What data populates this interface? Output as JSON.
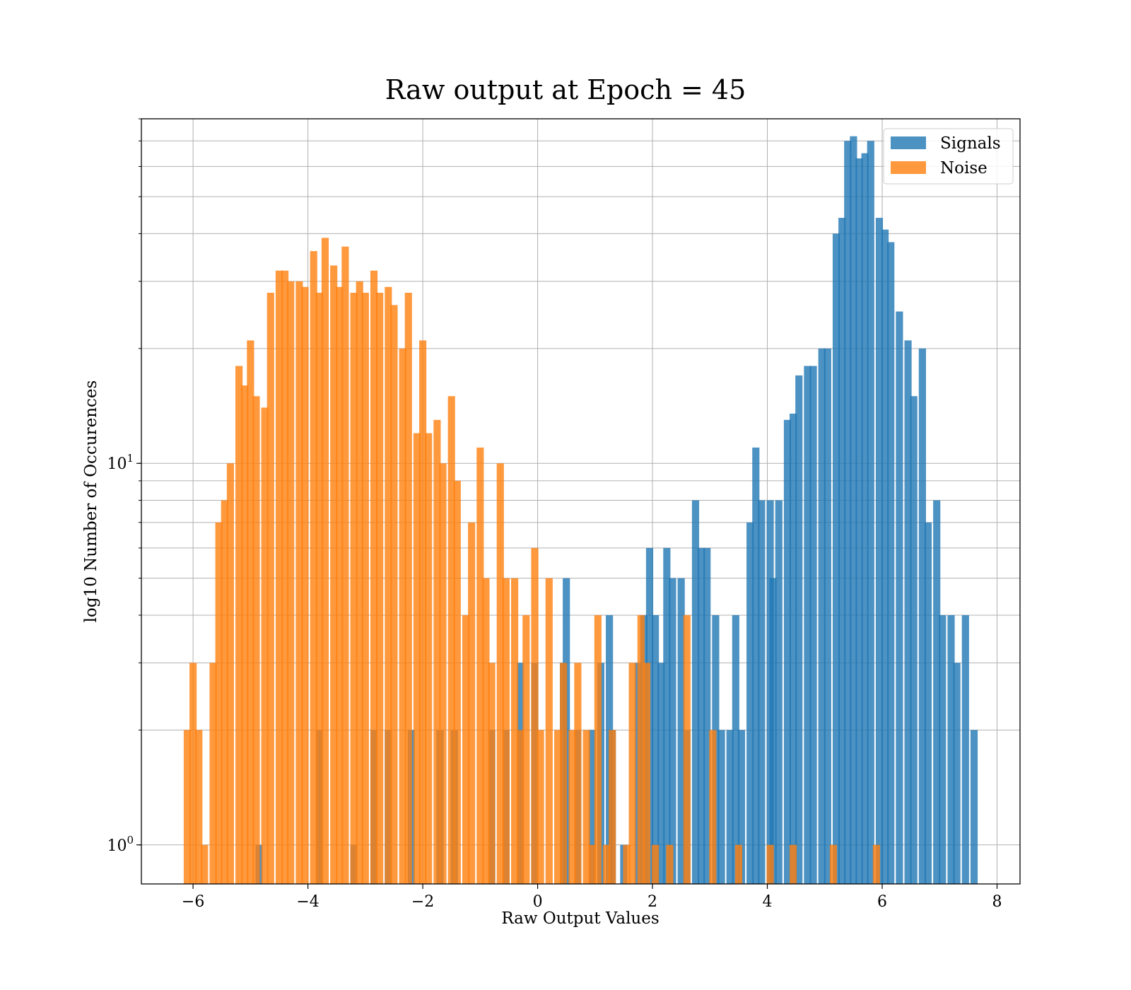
{
  "chart_data": {
    "type": "bar",
    "title": "Raw output at Epoch = 45",
    "xlabel": "Raw Output Values",
    "ylabel": "log10 Number of Occurences",
    "xlim": [
      -6.9,
      8.4
    ],
    "ylim": [
      0.79,
      80
    ],
    "yscale": "log",
    "grid": true,
    "legend_position": "top-right",
    "bin_width": 0.125,
    "xticks": [
      -6,
      -4,
      -2,
      0,
      2,
      4,
      6,
      8
    ],
    "xtick_labels": [
      "−6",
      "−4",
      "−2",
      "0",
      "2",
      "4",
      "6",
      "8"
    ],
    "yticks": [
      {
        "value": 1,
        "base": "10",
        "exp": "0"
      },
      {
        "value": 10,
        "base": "10",
        "exp": "1"
      }
    ],
    "series": [
      {
        "name": "Signals",
        "color": "#1f77b4",
        "opacity": 0.8,
        "bins": [
          [
            -4.85,
            1
          ],
          [
            -3.8,
            2
          ],
          [
            -3.2,
            1
          ],
          [
            -2.85,
            2
          ],
          [
            -2.6,
            2
          ],
          [
            -2.2,
            2
          ],
          [
            -1.7,
            2
          ],
          [
            -1.45,
            2
          ],
          [
            -0.8,
            2
          ],
          [
            -0.55,
            2
          ],
          [
            -0.3,
            3
          ],
          [
            -0.05,
            3
          ],
          [
            0.45,
            3
          ],
          [
            0.5,
            5
          ],
          [
            0.7,
            2
          ],
          [
            0.95,
            2
          ],
          [
            1.1,
            3
          ],
          [
            1.25,
            4
          ],
          [
            1.3,
            2
          ],
          [
            1.5,
            1
          ],
          [
            1.75,
            3
          ],
          [
            1.85,
            4
          ],
          [
            1.95,
            6
          ],
          [
            2.05,
            4
          ],
          [
            2.15,
            3
          ],
          [
            2.25,
            6
          ],
          [
            2.35,
            5
          ],
          [
            2.5,
            5
          ],
          [
            2.6,
            2
          ],
          [
            2.75,
            8
          ],
          [
            2.85,
            6
          ],
          [
            2.95,
            6
          ],
          [
            3.1,
            4
          ],
          [
            3.2,
            2
          ],
          [
            3.35,
            2
          ],
          [
            3.45,
            4
          ],
          [
            3.55,
            2
          ],
          [
            3.7,
            7
          ],
          [
            3.8,
            11
          ],
          [
            3.9,
            8
          ],
          [
            4.05,
            8
          ],
          [
            4.1,
            5
          ],
          [
            4.2,
            8
          ],
          [
            4.35,
            13
          ],
          [
            4.45,
            13.5
          ],
          [
            4.55,
            17
          ],
          [
            4.7,
            18
          ],
          [
            4.8,
            18
          ],
          [
            4.95,
            20
          ],
          [
            5.05,
            20
          ],
          [
            5.2,
            40
          ],
          [
            5.3,
            44
          ],
          [
            5.4,
            70
          ],
          [
            5.5,
            72
          ],
          [
            5.6,
            63
          ],
          [
            5.7,
            65
          ],
          [
            5.8,
            70
          ],
          [
            5.95,
            44
          ],
          [
            6.05,
            41
          ],
          [
            6.15,
            38
          ],
          [
            6.3,
            25
          ],
          [
            6.45,
            21
          ],
          [
            6.55,
            15
          ],
          [
            6.7,
            20
          ],
          [
            6.8,
            7
          ],
          [
            6.95,
            8
          ],
          [
            7.05,
            4
          ],
          [
            7.2,
            4
          ],
          [
            7.3,
            3
          ],
          [
            7.45,
            4
          ],
          [
            7.6,
            2
          ]
        ]
      },
      {
        "name": "Noise",
        "color": "#ff7f0e",
        "opacity": 0.8,
        "bins": [
          [
            -6.1,
            2
          ],
          [
            -6.0,
            3
          ],
          [
            -5.9,
            2
          ],
          [
            -5.8,
            1
          ],
          [
            -5.65,
            3
          ],
          [
            -5.55,
            7
          ],
          [
            -5.45,
            8
          ],
          [
            -5.35,
            10
          ],
          [
            -5.2,
            18
          ],
          [
            -5.1,
            16
          ],
          [
            -5.0,
            21
          ],
          [
            -4.9,
            15
          ],
          [
            -4.75,
            14
          ],
          [
            -4.65,
            28
          ],
          [
            -4.5,
            32
          ],
          [
            -4.4,
            32
          ],
          [
            -4.3,
            30
          ],
          [
            -4.15,
            30
          ],
          [
            -4.05,
            29
          ],
          [
            -3.9,
            36
          ],
          [
            -3.8,
            28
          ],
          [
            -3.7,
            39
          ],
          [
            -3.55,
            33
          ],
          [
            -3.45,
            29
          ],
          [
            -3.35,
            37
          ],
          [
            -3.2,
            28
          ],
          [
            -3.1,
            30
          ],
          [
            -3.0,
            28
          ],
          [
            -2.85,
            32
          ],
          [
            -2.75,
            28
          ],
          [
            -2.6,
            29
          ],
          [
            -2.5,
            26
          ],
          [
            -2.35,
            20
          ],
          [
            -2.25,
            28
          ],
          [
            -2.1,
            12
          ],
          [
            -2.0,
            21
          ],
          [
            -1.9,
            12
          ],
          [
            -1.75,
            13
          ],
          [
            -1.65,
            10
          ],
          [
            -1.5,
            15
          ],
          [
            -1.4,
            9
          ],
          [
            -1.25,
            4
          ],
          [
            -1.15,
            7
          ],
          [
            -1.0,
            11
          ],
          [
            -0.9,
            5
          ],
          [
            -0.8,
            3
          ],
          [
            -0.65,
            10
          ],
          [
            -0.55,
            5
          ],
          [
            -0.4,
            5
          ],
          [
            -0.3,
            2
          ],
          [
            -0.2,
            4
          ],
          [
            -0.05,
            6
          ],
          [
            0.05,
            2
          ],
          [
            0.2,
            5
          ],
          [
            0.35,
            2
          ],
          [
            0.45,
            3
          ],
          [
            0.6,
            2
          ],
          [
            0.7,
            3
          ],
          [
            0.85,
            2
          ],
          [
            0.95,
            1
          ],
          [
            1.05,
            4
          ],
          [
            1.2,
            1
          ],
          [
            1.3,
            2
          ],
          [
            1.55,
            1
          ],
          [
            1.65,
            3
          ],
          [
            1.8,
            4
          ],
          [
            1.9,
            3
          ],
          [
            2.05,
            1
          ],
          [
            2.3,
            1
          ],
          [
            2.6,
            4
          ],
          [
            3.05,
            2
          ],
          [
            3.5,
            1
          ],
          [
            4.05,
            1
          ],
          [
            4.45,
            1
          ],
          [
            5.15,
            1
          ],
          [
            5.9,
            1
          ]
        ]
      }
    ]
  }
}
